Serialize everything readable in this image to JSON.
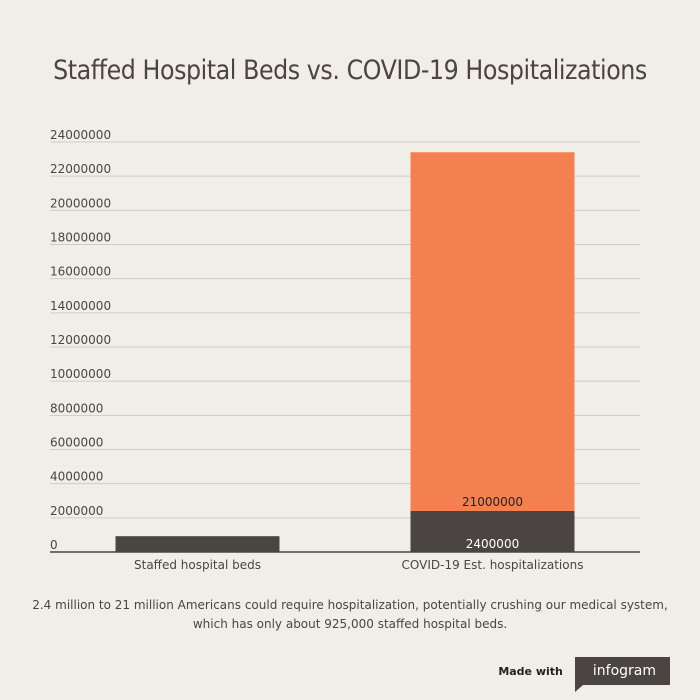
{
  "title": "Staffed Hospital Beds vs. COVID-19 Hospitalizations",
  "caption": {
    "line1": "2.4 million to 21 million Americans could require hospitalization, potentially crushing our medical system,",
    "line2": "which has only about 925,000 staffed hospital beds."
  },
  "footer": {
    "made_with": "Made with",
    "brand": "infogram"
  },
  "chart_data": {
    "type": "bar",
    "stacked": true,
    "categories": [
      "Staffed hospital beds",
      "COVID-19 Est. hospitalizations"
    ],
    "series": [
      {
        "values": [
          925000,
          2400000
        ],
        "color": "#4a4542",
        "labels": [
          "",
          "2400000"
        ]
      },
      {
        "values": [
          0,
          21000000
        ],
        "color": "#f5804f",
        "labels": [
          "",
          "21000000"
        ]
      }
    ],
    "ylim": [
      0,
      24000000
    ],
    "yticks": [
      0,
      2000000,
      4000000,
      6000000,
      8000000,
      10000000,
      12000000,
      14000000,
      16000000,
      18000000,
      20000000,
      22000000,
      24000000
    ],
    "grid": true,
    "legend": "none"
  }
}
